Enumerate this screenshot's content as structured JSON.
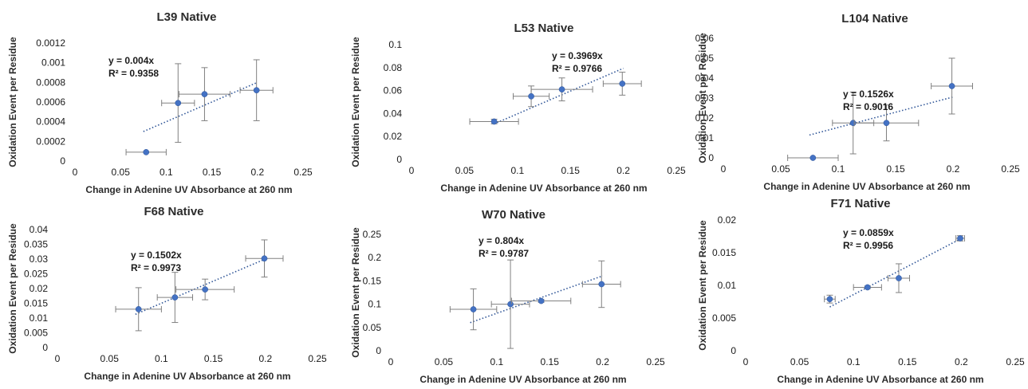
{
  "chart_data": [
    {
      "type": "scatter",
      "title": "L39 Native",
      "xlabel": "Change in Adenine UV Absorbance at 260 nm",
      "ylabel": "Oxidation Event per Residue",
      "xlim": [
        0,
        0.25
      ],
      "ylim": [
        0,
        0.0012
      ],
      "x_ticks": [
        "0",
        "0.05",
        "0.1",
        "0.15",
        "0.2",
        "0.25"
      ],
      "y_ticks": [
        "0",
        "0.0002",
        "0.0004",
        "0.0006",
        "0.0008",
        "0.001",
        "0.0012"
      ],
      "points": [
        {
          "x": 0.078,
          "y": 9e-05,
          "xerr": 0.022,
          "yerr": 0
        },
        {
          "x": 0.113,
          "y": 0.00059,
          "xerr": 0.018,
          "yerr": 0.0004
        },
        {
          "x": 0.142,
          "y": 0.00068,
          "xerr": 0.028,
          "yerr": 0.00027
        },
        {
          "x": 0.199,
          "y": 0.00072,
          "xerr": 0.018,
          "yerr": 0.00031
        }
      ],
      "trendline": {
        "slope": 0.004,
        "x_range": [
          0.075,
          0.2
        ]
      },
      "equation": "y = 0.004x",
      "r_squared": "R² = 0.9358"
    },
    {
      "type": "scatter",
      "title": "L53 Native",
      "xlabel": "Change in Adenine UV Absorbance at 260 nm",
      "ylabel": "Oxidation Event per Residue",
      "xlim": [
        0,
        0.25
      ],
      "ylim": [
        0,
        0.1
      ],
      "x_ticks": [
        "0",
        "0.05",
        "0.1",
        "0.15",
        "0.2",
        "0.25"
      ],
      "y_ticks": [
        "0",
        "0.02",
        "0.04",
        "0.06",
        "0.08",
        "0.1"
      ],
      "points": [
        {
          "x": 0.078,
          "y": 0.033,
          "xerr": 0.023,
          "yerr": 0.002
        },
        {
          "x": 0.113,
          "y": 0.055,
          "xerr": 0.017,
          "yerr": 0.009
        },
        {
          "x": 0.142,
          "y": 0.061,
          "xerr": 0.029,
          "yerr": 0.01
        },
        {
          "x": 0.199,
          "y": 0.066,
          "xerr": 0.018,
          "yerr": 0.01
        }
      ],
      "trendline": {
        "slope": 0.3969,
        "x_range": [
          0.078,
          0.2
        ]
      },
      "equation": "y = 0.3969x",
      "r_squared": "R² = 0.9766"
    },
    {
      "type": "scatter",
      "title": "L104 Native",
      "xlabel": "Change in Adenine UV Absorbance at 260 nm",
      "ylabel": "Oxidation Event per Residue",
      "xlim": [
        0,
        0.25
      ],
      "ylim": [
        0,
        0.06
      ],
      "x_ticks": [
        "0",
        "0.05",
        "0.1",
        "0.15",
        "0.2",
        "0.25"
      ],
      "y_ticks": [
        "0",
        "0.01",
        "0.02",
        "0.03",
        "0.04",
        "0.05",
        "0.06"
      ],
      "points": [
        {
          "x": 0.078,
          "y": 0,
          "xerr": 0.022,
          "yerr": 0
        },
        {
          "x": 0.113,
          "y": 0.0175,
          "xerr": 0.018,
          "yerr": 0.0155
        },
        {
          "x": 0.142,
          "y": 0.0175,
          "xerr": 0.028,
          "yerr": 0.009
        },
        {
          "x": 0.199,
          "y": 0.036,
          "xerr": 0.018,
          "yerr": 0.014
        }
      ],
      "trendline": {
        "slope": 0.1526,
        "x_range": [
          0.075,
          0.2
        ]
      },
      "equation": "y = 0.1526x",
      "r_squared": "R² = 0.9016"
    },
    {
      "type": "scatter",
      "title": "F68 Native",
      "xlabel": "Change in Adenine UV Absorbance at 260 nm",
      "ylabel": "Oxidation Event per Residue",
      "xlim": [
        0,
        0.25
      ],
      "ylim": [
        0,
        0.04
      ],
      "x_ticks": [
        "0",
        "0.05",
        "0.1",
        "0.15",
        "0.2",
        "0.25"
      ],
      "y_ticks": [
        "0",
        "0.005",
        "0.01",
        "0.015",
        "0.02",
        "0.025",
        "0.03",
        "0.035",
        "0.04"
      ],
      "points": [
        {
          "x": 0.078,
          "y": 0.013,
          "xerr": 0.022,
          "yerr": 0.0073
        },
        {
          "x": 0.113,
          "y": 0.017,
          "xerr": 0.017,
          "yerr": 0.0085
        },
        {
          "x": 0.142,
          "y": 0.0197,
          "xerr": 0.028,
          "yerr": 0.0035
        },
        {
          "x": 0.199,
          "y": 0.0302,
          "xerr": 0.018,
          "yerr": 0.0063
        }
      ],
      "trendline": {
        "slope": 0.1502,
        "x_range": [
          0.075,
          0.2
        ]
      },
      "equation": "y = 0.1502x",
      "r_squared": "R² = 0.9973"
    },
    {
      "type": "scatter",
      "title": "W70 Native",
      "xlabel": "Change in Adenine UV Absorbance at 260 nm",
      "ylabel": "Oxidation Event per Residue",
      "xlim": [
        0,
        0.25
      ],
      "ylim": [
        0,
        0.25
      ],
      "x_ticks": [
        "0",
        "0.05",
        "0.1",
        "0.15",
        "0.2",
        "0.25"
      ],
      "y_ticks": [
        "0",
        "0.05",
        "0.1",
        "0.15",
        "0.2",
        "0.25"
      ],
      "points": [
        {
          "x": 0.078,
          "y": 0.089,
          "xerr": 0.022,
          "yerr": 0.044
        },
        {
          "x": 0.113,
          "y": 0.1,
          "xerr": 0.018,
          "yerr": 0.095
        },
        {
          "x": 0.142,
          "y": 0.107,
          "xerr": 0.028,
          "yerr": 0.003
        },
        {
          "x": 0.199,
          "y": 0.143,
          "xerr": 0.018,
          "yerr": 0.05
        }
      ],
      "trendline": {
        "slope": 0.804,
        "x_range": [
          0.075,
          0.2
        ]
      },
      "equation": "y = 0.804x",
      "r_squared": "R² = 0.9787"
    },
    {
      "type": "scatter",
      "title": "F71 Native",
      "xlabel": "Change in Adenine UV Absorbance at 260 nm",
      "ylabel": "Oxidation Event per Residue",
      "xlim": [
        0,
        0.25
      ],
      "ylim": [
        0,
        0.02
      ],
      "x_ticks": [
        "0",
        "0.05",
        "0.1",
        "0.15",
        "0.2",
        "0.25"
      ],
      "y_ticks": [
        "0",
        "0.005",
        "0.01",
        "0.015",
        "0.02"
      ],
      "points": [
        {
          "x": 0.078,
          "y": 0.0079,
          "xerr": 0.005,
          "yerr": 0.0006
        },
        {
          "x": 0.113,
          "y": 0.0097,
          "xerr": 0.013,
          "yerr": 0.0002
        },
        {
          "x": 0.142,
          "y": 0.0111,
          "xerr": 0.01,
          "yerr": 0.0022
        },
        {
          "x": 0.199,
          "y": 0.0172,
          "xerr": 0.004,
          "yerr": 0.0004
        }
      ],
      "trendline": {
        "slope": 0.0859,
        "x_range": [
          0.078,
          0.2
        ]
      },
      "equation": "y = 0.0859x",
      "r_squared": "R² = 0.9956"
    }
  ]
}
